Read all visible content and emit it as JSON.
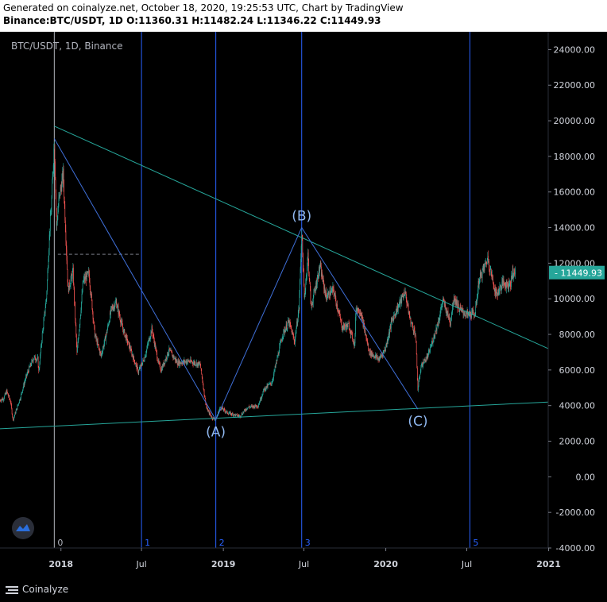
{
  "header": {
    "generated_line": "Generated on coinalyze.net, October 18, 2020, 19:25:53 UTC, Chart by TradingView",
    "ohlc_line": "Binance:BTC/USDT, 1D O:11360.31 H:11482.24 L:11346.22 C:11449.93"
  },
  "chart_data": {
    "type": "candlestick",
    "title": "BTC/USDT, 1D, Binance",
    "last_price": 11449.93,
    "last_price_label": "11449.93",
    "ylim": [
      -4000,
      25000
    ],
    "xlim": [
      "2017-08-17",
      "2020-12-31"
    ],
    "y_ticks": [
      24000,
      22000,
      20000,
      18000,
      16000,
      14000,
      12000,
      10000,
      8000,
      6000,
      4000,
      2000,
      0,
      -2000,
      -4000
    ],
    "y_tick_labels": [
      "24000.00",
      "22000.00",
      "20000.00",
      "18000.00",
      "16000.00",
      "14000.00",
      "12000.00",
      "10000.00",
      "8000.00",
      "6000.00",
      "4000.00",
      "2000.00",
      "0.00",
      "-2000.00",
      "-4000.00"
    ],
    "x_ticks": [
      {
        "date": "2018-01-01",
        "label": "2018",
        "bold": true
      },
      {
        "date": "2018-07-01",
        "label": "Jul",
        "bold": false
      },
      {
        "date": "2019-01-01",
        "label": "2019",
        "bold": true
      },
      {
        "date": "2019-07-01",
        "label": "Jul",
        "bold": false
      },
      {
        "date": "2020-01-01",
        "label": "2020",
        "bold": true
      },
      {
        "date": "2020-07-01",
        "label": "Jul",
        "bold": false
      },
      {
        "date": "2021-01-01",
        "label": "2021",
        "bold": true
      }
    ],
    "price_path": [
      [
        "2017-08-17",
        4300
      ],
      [
        "2017-08-25",
        4400
      ],
      [
        "2017-09-01",
        4800
      ],
      [
        "2017-09-10",
        4200
      ],
      [
        "2017-09-15",
        3200
      ],
      [
        "2017-09-22",
        3700
      ],
      [
        "2017-10-01",
        4400
      ],
      [
        "2017-10-12",
        5400
      ],
      [
        "2017-10-20",
        6000
      ],
      [
        "2017-11-01",
        6700
      ],
      [
        "2017-11-10",
        6600
      ],
      [
        "2017-11-12",
        5900
      ],
      [
        "2017-11-20",
        8000
      ],
      [
        "2017-11-29",
        10000
      ],
      [
        "2017-12-07",
        14000
      ],
      [
        "2017-12-10",
        15000
      ],
      [
        "2017-12-17",
        19000
      ],
      [
        "2017-12-22",
        14000
      ],
      [
        "2017-12-27",
        15500
      ],
      [
        "2018-01-06",
        17000
      ],
      [
        "2018-01-12",
        13500
      ],
      [
        "2018-01-17",
        10500
      ],
      [
        "2018-01-28",
        11500
      ],
      [
        "2018-02-06",
        6900
      ],
      [
        "2018-02-20",
        11000
      ],
      [
        "2018-03-05",
        11400
      ],
      [
        "2018-03-18",
        8000
      ],
      [
        "2018-04-01",
        6800
      ],
      [
        "2018-04-12",
        7900
      ],
      [
        "2018-04-24",
        9400
      ],
      [
        "2018-05-05",
        9800
      ],
      [
        "2018-05-20",
        8300
      ],
      [
        "2018-06-01",
        7500
      ],
      [
        "2018-06-24",
        5900
      ],
      [
        "2018-07-08",
        6700
      ],
      [
        "2018-07-24",
        8300
      ],
      [
        "2018-08-08",
        6400
      ],
      [
        "2018-08-14",
        6000
      ],
      [
        "2018-09-01",
        7100
      ],
      [
        "2018-09-20",
        6400
      ],
      [
        "2018-10-15",
        6500
      ],
      [
        "2018-11-10",
        6300
      ],
      [
        "2018-11-20",
        4500
      ],
      [
        "2018-11-25",
        3800
      ],
      [
        "2018-12-07",
        3300
      ],
      [
        "2018-12-15",
        3250
      ],
      [
        "2018-12-25",
        3900
      ],
      [
        "2019-01-10",
        3600
      ],
      [
        "2019-02-07",
        3400
      ],
      [
        "2019-02-24",
        3900
      ],
      [
        "2019-03-20",
        4000
      ],
      [
        "2019-04-02",
        4900
      ],
      [
        "2019-04-20",
        5300
      ],
      [
        "2019-05-14",
        8000
      ],
      [
        "2019-05-28",
        8700
      ],
      [
        "2019-06-10",
        7600
      ],
      [
        "2019-06-20",
        9500
      ],
      [
        "2019-06-26",
        13800
      ],
      [
        "2019-07-02",
        10000
      ],
      [
        "2019-07-10",
        12500
      ],
      [
        "2019-07-17",
        9500
      ],
      [
        "2019-08-06",
        11800
      ],
      [
        "2019-08-20",
        10100
      ],
      [
        "2019-09-05",
        10500
      ],
      [
        "2019-09-25",
        8400
      ],
      [
        "2019-10-10",
        8500
      ],
      [
        "2019-10-23",
        7400
      ],
      [
        "2019-10-26",
        9500
      ],
      [
        "2019-11-05",
        9300
      ],
      [
        "2019-11-25",
        7000
      ],
      [
        "2019-12-17",
        6600
      ],
      [
        "2019-12-31",
        7200
      ],
      [
        "2020-01-15",
        8800
      ],
      [
        "2020-02-13",
        10400
      ],
      [
        "2020-02-25",
        8800
      ],
      [
        "2020-03-08",
        8000
      ],
      [
        "2020-03-13",
        4900
      ],
      [
        "2020-03-20",
        6200
      ],
      [
        "2020-04-05",
        6800
      ],
      [
        "2020-04-29",
        8800
      ],
      [
        "2020-05-08",
        9900
      ],
      [
        "2020-05-25",
        8700
      ],
      [
        "2020-06-02",
        10100
      ],
      [
        "2020-06-15",
        9400
      ],
      [
        "2020-07-01",
        9100
      ],
      [
        "2020-07-20",
        9200
      ],
      [
        "2020-07-28",
        11000
      ],
      [
        "2020-08-10",
        11800
      ],
      [
        "2020-08-17",
        12300
      ],
      [
        "2020-08-25",
        11400
      ],
      [
        "2020-09-05",
        10200
      ],
      [
        "2020-09-20",
        10900
      ],
      [
        "2020-09-30",
        10800
      ],
      [
        "2020-10-08",
        10900
      ],
      [
        "2020-10-12",
        11500
      ],
      [
        "2020-10-18",
        11449.93
      ]
    ],
    "annotations": {
      "trendlines": [
        {
          "name": "descending-resistance-line",
          "from": [
            "2017-12-17",
            19700
          ],
          "to": [
            "2020-12-31",
            7200
          ],
          "color": "#26a69a"
        },
        {
          "name": "ascending-support-line",
          "from": [
            "2017-08-17",
            2700
          ],
          "to": [
            "2020-12-31",
            4200
          ],
          "color": "#26a69a"
        }
      ],
      "abc_pattern": {
        "color": "#3f6fd8",
        "points": [
          {
            "date": "2017-12-17",
            "price": 19000,
            "label": ""
          },
          {
            "date": "2018-12-15",
            "price": 3200,
            "label": "(A)"
          },
          {
            "date": "2019-06-26",
            "price": 14000,
            "label": "(B)"
          },
          {
            "date": "2020-03-13",
            "price": 3800,
            "label": "(C)"
          }
        ]
      },
      "dashed_level": {
        "from": "2017-12-25",
        "to": "2018-06-30",
        "price": 12500,
        "color": "#787b86"
      },
      "cycle_lines": [
        {
          "date": "2017-12-17",
          "label": "0",
          "color": "#b2b5be"
        },
        {
          "date": "2018-07-01",
          "label": "1",
          "color": "#2962ff"
        },
        {
          "date": "2018-12-15",
          "label": "2",
          "color": "#2962ff"
        },
        {
          "date": "2019-06-26",
          "label": "3",
          "color": "#2962ff"
        },
        {
          "date": "2020-07-08",
          "label": "5",
          "color": "#2962ff"
        }
      ]
    },
    "colors": {
      "up": "#26a69a",
      "down": "#ef5350",
      "price_tag": "#26a69a",
      "axis_text": "#d1d4dc",
      "label_text": "#b2b5be"
    }
  },
  "footer": {
    "brand": "Coinalyze",
    "icon": "coinalyze-logo-icon"
  }
}
